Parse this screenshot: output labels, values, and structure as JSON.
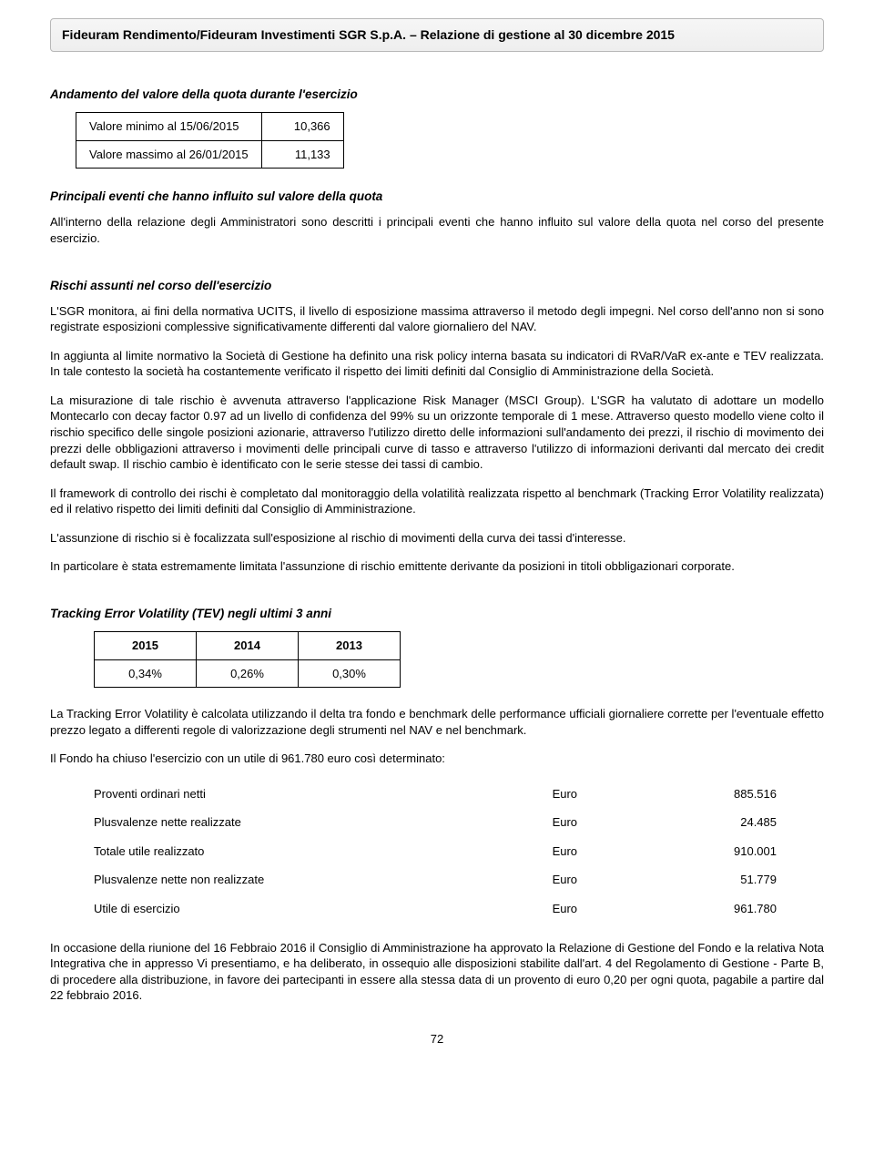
{
  "header": {
    "text": "Fideuram Rendimento/Fideuram Investimenti SGR S.p.A. – Relazione di gestione al 30 dicembre 2015"
  },
  "section1": {
    "title": "Andamento del valore della quota durante l'esercizio",
    "rows": [
      {
        "label": "Valore minimo al 15/06/2015",
        "value": "10,366"
      },
      {
        "label": "Valore massimo al 26/01/2015",
        "value": "11,133"
      }
    ]
  },
  "section2": {
    "title": "Principali eventi che hanno influito sul valore della quota",
    "p1": "All'interno della relazione degli Amministratori sono descritti i principali eventi che hanno influito sul valore della quota nel corso del presente esercizio."
  },
  "section3": {
    "title": "Rischi assunti nel corso dell'esercizio",
    "p1": "L'SGR monitora, ai fini della normativa UCITS, il livello di esposizione massima attraverso il metodo degli impegni. Nel corso dell'anno non si sono registrate esposizioni complessive significativamente differenti dal valore giornaliero del NAV.",
    "p2": "In aggiunta al limite normativo la Società di Gestione ha definito una risk policy interna basata su indicatori di RVaR/VaR ex-ante e TEV realizzata. In tale contesto la società ha costantemente verificato il rispetto dei limiti definiti dal Consiglio di Amministrazione della Società.",
    "p3": "La misurazione di tale rischio è avvenuta attraverso l'applicazione Risk Manager (MSCI Group). L'SGR ha valutato di adottare un modello Montecarlo con decay factor 0.97 ad un livello di confidenza del 99% su un orizzonte temporale di 1 mese. Attraverso questo modello viene colto il rischio specifico delle singole posizioni azionarie, attraverso l'utilizzo diretto delle informazioni sull'andamento dei prezzi, il rischio di movimento dei prezzi delle obbligazioni attraverso i movimenti delle principali curve di tasso e attraverso l'utilizzo di informazioni derivanti dal mercato dei credit default swap. Il rischio cambio è identificato con le serie stesse dei tassi di cambio.",
    "p4": "Il framework di controllo dei rischi è completato dal monitoraggio della volatilità realizzata rispetto al benchmark (Tracking Error Volatility realizzata) ed il relativo rispetto dei limiti definiti dal Consiglio di Amministrazione.",
    "p5": "L'assunzione di rischio si è focalizzata sull'esposizione al rischio di movimenti della curva dei tassi d'interesse.",
    "p6": "In particolare è stata estremamente limitata l'assunzione di rischio emittente derivante da posizioni in titoli obbligazionari corporate."
  },
  "tev": {
    "title": "Tracking Error Volatility (TEV) negli ultimi 3 anni",
    "headers": [
      "2015",
      "2014",
      "2013"
    ],
    "values": [
      "0,34%",
      "0,26%",
      "0,30%"
    ],
    "p1": "La Tracking Error Volatility è calcolata utilizzando il delta tra fondo e benchmark delle performance ufficiali giornaliere corrette per l'eventuale effetto prezzo legato a differenti regole di valorizzazione degli strumenti nel NAV e nel benchmark."
  },
  "utile": {
    "intro": "Il Fondo ha chiuso l'esercizio con un utile di 961.780 euro così determinato:",
    "rows": [
      {
        "label": "Proventi ordinari netti",
        "euro": "Euro",
        "amount": "885.516"
      },
      {
        "label": "Plusvalenze nette realizzate",
        "euro": "Euro",
        "amount": "24.485"
      },
      {
        "label": "Totale utile realizzato",
        "euro": "Euro",
        "amount": "910.001"
      },
      {
        "label": "Plusvalenze nette non realizzate",
        "euro": "Euro",
        "amount": "51.779"
      },
      {
        "label": "Utile di esercizio",
        "euro": "Euro",
        "amount": "961.780"
      }
    ]
  },
  "closing": {
    "p1": "In occasione della riunione del 16 Febbraio 2016 il Consiglio di Amministrazione ha approvato la Relazione di Gestione del Fondo e la relativa Nota Integrativa che in appresso Vi presentiamo, e ha deliberato, in ossequio alle disposizioni stabilite dall'art. 4 del Regolamento di Gestione - Parte B, di procedere alla distribuzione, in favore dei partecipanti in essere alla stessa data di un provento di euro 0,20 per ogni quota, pagabile a partire dal 22 febbraio 2016."
  },
  "page": "72"
}
